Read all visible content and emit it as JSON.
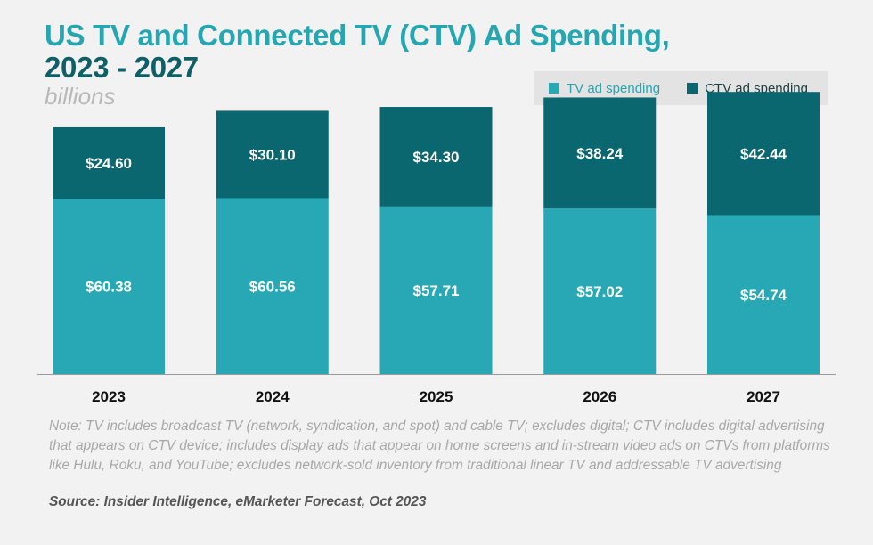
{
  "title_line1": "US TV and Connected TV (CTV) Ad Spending,",
  "title_line2": "2023 - 2027",
  "subtitle": "billions",
  "legend": {
    "tv": "TV ad spending",
    "ctv": "CTV ad spending"
  },
  "colors": {
    "tv": "#27a8b4",
    "ctv": "#0a6770",
    "title": "#26a6b0",
    "title_line2": "#0e5f66"
  },
  "chart_data": {
    "type": "bar",
    "stacked": true,
    "categories": [
      "2023",
      "2024",
      "2025",
      "2026",
      "2027"
    ],
    "series": [
      {
        "name": "TV ad spending",
        "values": [
          60.38,
          60.56,
          57.71,
          57.02,
          54.74
        ],
        "labels": [
          "$60.38",
          "$60.56",
          "$57.71",
          "$57.02",
          "$54.74"
        ]
      },
      {
        "name": "CTV ad spending",
        "values": [
          24.6,
          30.1,
          34.3,
          38.24,
          42.44
        ],
        "labels": [
          "$24.60",
          "$30.10",
          "$34.30",
          "$38.24",
          "$42.44"
        ]
      }
    ],
    "title": "US TV and Connected TV (CTV) Ad Spending, 2023 - 2027",
    "ylabel": "billions",
    "ylim": [
      0,
      100
    ],
    "legend_position": "top-right",
    "grid": false
  },
  "note": "Note: TV includes broadcast TV (network, syndication, and spot) and cable TV; excludes digital; CTV includes digital advertising that appears on CTV device; includes display ads that appear on home screens and in-stream video ads on CTVs from platforms like Hulu, Roku, and YouTube; excludes network-sold inventory from traditional linear TV and addressable TV advertising",
  "source": "Source: Insider Intelligence, eMarketer Forecast, Oct 2023"
}
